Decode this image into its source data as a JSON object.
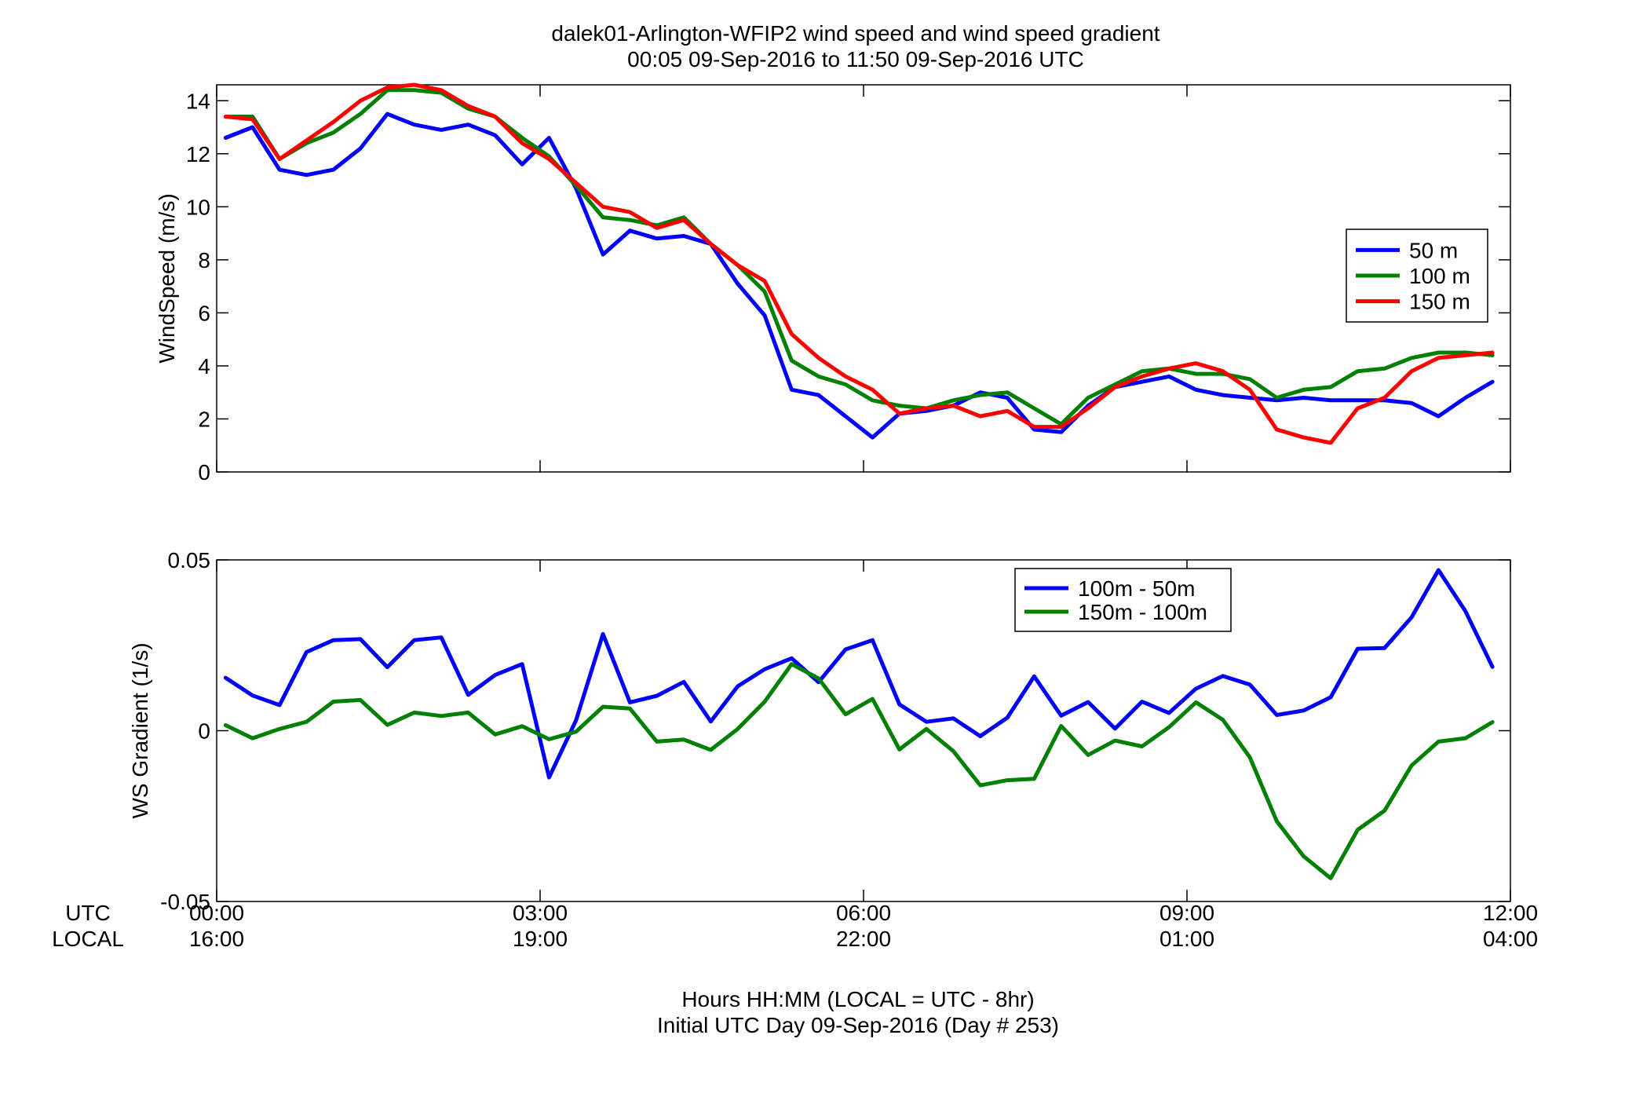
{
  "figure": {
    "title_line1": "dalek01-Arlington-WFIP2  wind speed and wind speed gradient",
    "title_line2": "00:05 09-Sep-2016 to 11:50 09-Sep-2016  UTC",
    "xlabel_line1": "Hours HH:MM  (LOCAL = UTC - 8hr)",
    "xlabel_line2": "Initial UTC Day 09-Sep-2016 (Day # 253)",
    "row_label_utc": "UTC",
    "row_label_local": "LOCAL",
    "x_tick_labels_utc": [
      "00:00",
      "03:00",
      "06:00",
      "09:00",
      "12:00"
    ],
    "x_tick_labels_local": [
      "16:00",
      "19:00",
      "22:00",
      "01:00",
      "04:00"
    ]
  },
  "chart_data": [
    {
      "type": "line",
      "ylabel": "WindSpeed (m/s)",
      "xlim": [
        0,
        12
      ],
      "ylim": [
        0,
        14.6
      ],
      "yticks": [
        0,
        2,
        4,
        6,
        8,
        10,
        12,
        14
      ],
      "xticks": [
        0,
        3,
        6,
        9,
        12
      ],
      "grid": false,
      "legend_position": "right",
      "x": [
        0.083,
        0.333,
        0.583,
        0.833,
        1.083,
        1.333,
        1.583,
        1.833,
        2.083,
        2.333,
        2.583,
        2.833,
        3.083,
        3.333,
        3.583,
        3.833,
        4.083,
        4.333,
        4.583,
        4.833,
        5.083,
        5.333,
        5.583,
        5.833,
        6.083,
        6.333,
        6.583,
        6.833,
        7.083,
        7.333,
        7.583,
        7.833,
        8.083,
        8.333,
        8.583,
        8.833,
        9.083,
        9.333,
        9.583,
        9.833,
        10.083,
        10.333,
        10.583,
        10.833,
        11.083,
        11.333,
        11.583,
        11.833
      ],
      "series": [
        {
          "name": "50 m",
          "color": "#0000ff",
          "values": [
            12.6,
            13.0,
            11.4,
            11.2,
            11.4,
            12.2,
            13.5,
            13.1,
            12.9,
            13.1,
            12.7,
            11.6,
            12.6,
            10.7,
            8.2,
            9.1,
            8.8,
            8.9,
            8.6,
            7.1,
            5.9,
            3.1,
            2.9,
            2.1,
            1.3,
            2.2,
            2.3,
            2.5,
            3.0,
            2.8,
            1.6,
            1.5,
            2.5,
            3.2,
            3.4,
            3.6,
            3.1,
            2.9,
            2.8,
            2.7,
            2.8,
            2.7,
            2.7,
            2.7,
            2.6,
            2.1,
            2.8,
            3.4
          ]
        },
        {
          "name": "100 m",
          "color": "#008000",
          "values": [
            13.4,
            13.4,
            11.8,
            12.4,
            12.8,
            13.5,
            14.4,
            14.4,
            14.3,
            13.7,
            13.4,
            12.6,
            11.9,
            10.8,
            9.6,
            9.5,
            9.3,
            9.6,
            8.6,
            7.8,
            6.8,
            4.2,
            3.6,
            3.3,
            2.7,
            2.5,
            2.4,
            2.7,
            2.9,
            3.0,
            2.4,
            1.8,
            2.8,
            3.3,
            3.8,
            3.9,
            3.7,
            3.7,
            3.5,
            2.8,
            3.1,
            3.2,
            3.8,
            3.9,
            4.3,
            4.5,
            4.5,
            4.4
          ]
        },
        {
          "name": "150 m",
          "color": "#ff0000",
          "values": [
            13.4,
            13.3,
            11.8,
            12.5,
            13.2,
            14.0,
            14.5,
            14.6,
            14.4,
            13.8,
            13.4,
            12.4,
            11.8,
            10.9,
            10.0,
            9.8,
            9.2,
            9.5,
            8.6,
            7.8,
            7.2,
            5.2,
            4.3,
            3.6,
            3.1,
            2.2,
            2.4,
            2.5,
            2.1,
            2.3,
            1.7,
            1.7,
            2.4,
            3.2,
            3.6,
            3.9,
            4.1,
            3.8,
            3.1,
            1.6,
            1.3,
            1.1,
            2.4,
            2.8,
            3.8,
            4.3,
            4.4,
            4.5
          ]
        }
      ]
    },
    {
      "type": "line",
      "ylabel": "WS Gradient (1/s)",
      "xlim": [
        0,
        12
      ],
      "ylim": [
        -0.05,
        0.05
      ],
      "yticks": [
        -0.05,
        0,
        0.05
      ],
      "ytick_labels": [
        "-0.05",
        "0",
        "0.05"
      ],
      "xticks": [
        0,
        3,
        6,
        9,
        12
      ],
      "grid": false,
      "legend_position": "top-right",
      "x": [
        0.083,
        0.333,
        0.583,
        0.833,
        1.083,
        1.333,
        1.583,
        1.833,
        2.083,
        2.333,
        2.583,
        2.833,
        3.083,
        3.333,
        3.583,
        3.833,
        4.083,
        4.333,
        4.583,
        4.833,
        5.083,
        5.333,
        5.583,
        5.833,
        6.083,
        6.333,
        6.583,
        6.833,
        7.083,
        7.333,
        7.583,
        7.833,
        8.083,
        8.333,
        8.583,
        8.833,
        9.083,
        9.333,
        9.583,
        9.833,
        10.083,
        10.333,
        10.583,
        10.833,
        11.083,
        11.333,
        11.583,
        11.833
      ],
      "series": [
        {
          "name": "100m - 50m",
          "color": "#0000ff",
          "values": [
            0.0155,
            0.0103,
            0.0075,
            0.023,
            0.0265,
            0.0268,
            0.0186,
            0.0265,
            0.0273,
            0.0105,
            0.0163,
            0.0195,
            -0.0137,
            0.003,
            0.0283,
            0.0083,
            0.0102,
            0.0143,
            0.0027,
            0.013,
            0.018,
            0.0212,
            0.0142,
            0.0238,
            0.0265,
            0.0077,
            0.0026,
            0.0036,
            -0.0016,
            0.0038,
            0.0159,
            0.0044,
            0.0084,
            0.0006,
            0.0085,
            0.0052,
            0.0123,
            0.016,
            0.0135,
            0.0046,
            0.0059,
            0.0098,
            0.024,
            0.0242,
            0.0332,
            0.047,
            0.035,
            0.0187
          ]
        },
        {
          "name": "150m - 100m",
          "color": "#008000",
          "values": [
            0.0016,
            -0.0022,
            0.0005,
            0.0026,
            0.0085,
            0.009,
            0.0017,
            0.0053,
            0.0043,
            0.0053,
            -0.0011,
            0.0013,
            -0.0025,
            -0.0003,
            0.007,
            0.0065,
            -0.0032,
            -0.0026,
            -0.0056,
            0.0005,
            0.0085,
            0.0195,
            0.0153,
            0.0048,
            0.0093,
            -0.0055,
            0.0005,
            -0.006,
            -0.016,
            -0.0145,
            -0.0141,
            0.0014,
            -0.0071,
            -0.0029,
            -0.0046,
            0.001,
            0.0083,
            0.0032,
            -0.0078,
            -0.0265,
            -0.0368,
            -0.0432,
            -0.029,
            -0.0234,
            -0.0102,
            -0.0032,
            -0.0022,
            0.0025
          ]
        }
      ]
    }
  ]
}
